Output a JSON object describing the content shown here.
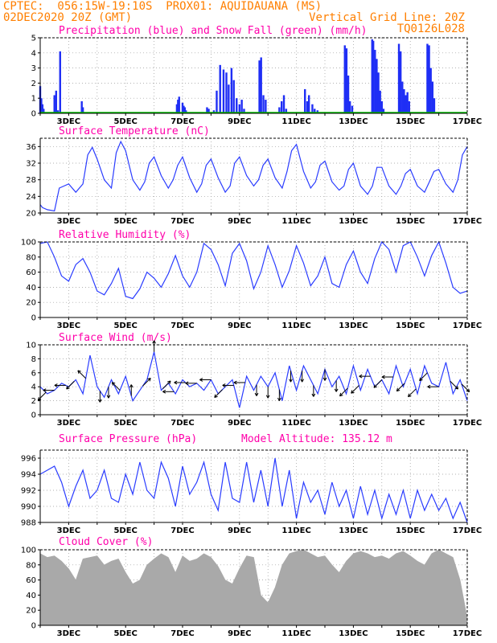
{
  "header": {
    "line1_left": "CPTEC:  056:15W-19:10S  PROX01: AQUIDAUANA (MS)",
    "line2_left": "02DEC2020 20Z (GMT)",
    "line2_right": "Vertical Grid Line: 20Z",
    "line3_right": "TQ0126L028"
  },
  "colors": {
    "header": "#ff7f00",
    "title": "#ff00aa",
    "line": "#2a3cff",
    "bar": "#1f2ef5",
    "snow": "#00c000",
    "cloud": "#a9a9a9",
    "arrow": "#000000"
  },
  "chart_data": [
    {
      "type": "bar",
      "title": "Precipitation (blue) and Snow Fall (green) (mm/h)",
      "ylim": [
        0,
        5
      ],
      "yticks": [
        0,
        1,
        2,
        3,
        4,
        5
      ],
      "x_ticks": [
        "3DEC",
        "5DEC",
        "7DEC",
        "9DEC",
        "11DEC",
        "13DEC",
        "15DEC",
        "17DEC"
      ],
      "series": [
        {
          "name": "Precipitation",
          "x": [
            2.0,
            2.04,
            2.08,
            2.12,
            2.5,
            2.56,
            2.62,
            2.7,
            3.46,
            3.5,
            6.8,
            6.84,
            6.88,
            7.0,
            7.04,
            7.08,
            7.12,
            7.86,
            7.92,
            8.1,
            8.2,
            8.32,
            8.44,
            8.54,
            8.62,
            8.72,
            8.8,
            8.9,
            9.0,
            9.08,
            9.16,
            9.7,
            9.76,
            9.84,
            9.92,
            10.4,
            10.48,
            10.56,
            10.64,
            11.3,
            11.38,
            11.44,
            11.56,
            11.64,
            11.74,
            12.7,
            12.76,
            12.82,
            12.88,
            12.96,
            13.66,
            13.7,
            13.76,
            13.82,
            13.88,
            13.94,
            14.0,
            14.06,
            14.6,
            14.66,
            14.72,
            14.78,
            14.84,
            14.9,
            14.96,
            15.6,
            15.66,
            15.72,
            15.78,
            15.84
          ],
          "values": [
            1.8,
            1.0,
            0.6,
            0.3,
            1.2,
            1.5,
            0.2,
            4.1,
            0.8,
            0.4,
            0.6,
            0.9,
            1.1,
            0.7,
            0.5,
            0.4,
            0.2,
            0.4,
            0.3,
            0.2,
            1.5,
            3.2,
            2.9,
            2.7,
            1.9,
            3.0,
            2.2,
            1.0,
            0.6,
            0.9,
            0.3,
            3.5,
            3.7,
            1.2,
            0.9,
            0.4,
            0.8,
            1.2,
            0.3,
            1.6,
            0.8,
            1.2,
            0.6,
            0.3,
            0.2,
            4.5,
            4.3,
            2.5,
            0.8,
            0.5,
            4.9,
            4.8,
            4.2,
            3.6,
            2.7,
            1.5,
            0.8,
            0.3,
            4.6,
            4.1,
            2.1,
            1.6,
            1.2,
            1.4,
            0.8,
            4.6,
            4.5,
            3.0,
            2.1,
            1.0
          ]
        },
        {
          "name": "Snow Fall",
          "x": [
            2.0,
            17.0
          ],
          "values": [
            0.05,
            0.05
          ]
        }
      ]
    },
    {
      "type": "line",
      "title": "Surface Temperature (nC)",
      "ylim": [
        20,
        38
      ],
      "yticks": [
        20,
        24,
        28,
        32,
        36
      ],
      "x_ticks": [
        "3DEC",
        "5DEC",
        "7DEC",
        "9DEC",
        "11DEC",
        "13DEC",
        "15DEC",
        "17DEC"
      ],
      "x": [
        2.0,
        2.08,
        2.25,
        2.5,
        2.67,
        3.0,
        3.25,
        3.5,
        3.67,
        3.83,
        4.0,
        4.25,
        4.5,
        4.67,
        4.83,
        5.0,
        5.25,
        5.5,
        5.67,
        5.83,
        6.0,
        6.25,
        6.5,
        6.67,
        6.83,
        7.0,
        7.25,
        7.5,
        7.67,
        7.83,
        8.0,
        8.25,
        8.5,
        8.67,
        8.83,
        9.0,
        9.25,
        9.5,
        9.67,
        9.83,
        10.0,
        10.25,
        10.5,
        10.67,
        10.83,
        11.0,
        11.25,
        11.5,
        11.67,
        11.83,
        12.0,
        12.25,
        12.5,
        12.67,
        12.83,
        13.0,
        13.25,
        13.5,
        13.67,
        13.83,
        14.0,
        14.25,
        14.5,
        14.67,
        14.83,
        15.0,
        15.25,
        15.5,
        15.67,
        15.83,
        16.0,
        16.25,
        16.5,
        16.67,
        16.83,
        17.0
      ],
      "y": [
        22.0,
        21.3,
        20.8,
        20.5,
        26.0,
        27.0,
        25.0,
        27.0,
        34.0,
        35.8,
        33.0,
        28.0,
        26.0,
        34.5,
        37.2,
        35.0,
        28.0,
        25.5,
        27.5,
        32.0,
        33.5,
        29.0,
        26.0,
        28.0,
        31.5,
        33.5,
        28.5,
        25.0,
        27.0,
        31.5,
        33.0,
        28.5,
        25.0,
        26.5,
        32.0,
        33.5,
        29.0,
        26.5,
        28.0,
        31.5,
        33.0,
        28.5,
        26.0,
        30.0,
        35.0,
        36.5,
        30.0,
        26.0,
        27.5,
        31.5,
        32.5,
        27.5,
        25.5,
        26.5,
        30.5,
        32.0,
        26.5,
        24.5,
        26.5,
        31.0,
        31.0,
        26.5,
        24.5,
        26.5,
        29.5,
        30.5,
        26.5,
        25.0,
        27.5,
        30.0,
        30.5,
        27.0,
        25.0,
        28.0,
        34.0,
        36.0
      ]
    },
    {
      "type": "line",
      "title": "Relative Humidity (%)",
      "ylim": [
        0,
        100
      ],
      "yticks": [
        0,
        20,
        40,
        60,
        80,
        100
      ],
      "x_ticks": [
        "3DEC",
        "5DEC",
        "7DEC",
        "9DEC",
        "11DEC",
        "13DEC",
        "15DEC",
        "17DEC"
      ],
      "x": [
        2.0,
        2.25,
        2.5,
        2.75,
        3.0,
        3.25,
        3.5,
        3.75,
        4.0,
        4.25,
        4.5,
        4.75,
        5.0,
        5.25,
        5.5,
        5.75,
        6.0,
        6.25,
        6.5,
        6.75,
        7.0,
        7.25,
        7.5,
        7.75,
        8.0,
        8.25,
        8.5,
        8.75,
        9.0,
        9.25,
        9.5,
        9.75,
        10.0,
        10.25,
        10.5,
        10.75,
        11.0,
        11.25,
        11.5,
        11.75,
        12.0,
        12.25,
        12.5,
        12.75,
        13.0,
        13.25,
        13.5,
        13.75,
        14.0,
        14.25,
        14.5,
        14.75,
        15.0,
        15.25,
        15.5,
        15.75,
        16.0,
        16.25,
        16.5,
        16.75,
        17.0
      ],
      "y": [
        98,
        100,
        80,
        55,
        48,
        70,
        78,
        60,
        35,
        30,
        45,
        65,
        28,
        25,
        38,
        60,
        52,
        40,
        58,
        82,
        55,
        40,
        60,
        98,
        90,
        70,
        42,
        85,
        98,
        75,
        38,
        60,
        95,
        70,
        40,
        62,
        95,
        72,
        42,
        55,
        80,
        45,
        40,
        70,
        88,
        60,
        45,
        78,
        100,
        90,
        60,
        95,
        100,
        80,
        55,
        82,
        100,
        72,
        40,
        32,
        35
      ]
    },
    {
      "type": "line",
      "title": "Surface Wind (m/s)",
      "ylim": [
        0,
        10
      ],
      "yticks": [
        0,
        2,
        4,
        6,
        8,
        10
      ],
      "x_ticks": [
        "3DEC",
        "5DEC",
        "7DEC",
        "9DEC",
        "11DEC",
        "13DEC",
        "15DEC",
        "17DEC"
      ],
      "x": [
        2.0,
        2.25,
        2.5,
        2.75,
        3.0,
        3.25,
        3.5,
        3.75,
        4.0,
        4.25,
        4.5,
        4.75,
        5.0,
        5.25,
        5.5,
        5.75,
        6.0,
        6.25,
        6.5,
        6.75,
        7.0,
        7.25,
        7.5,
        7.75,
        8.0,
        8.25,
        8.5,
        8.75,
        9.0,
        9.25,
        9.5,
        9.75,
        10.0,
        10.25,
        10.5,
        10.75,
        11.0,
        11.25,
        11.5,
        11.75,
        12.0,
        12.25,
        12.5,
        12.75,
        13.0,
        13.25,
        13.5,
        13.75,
        14.0,
        14.25,
        14.5,
        14.75,
        15.0,
        15.25,
        15.5,
        15.75,
        16.0,
        16.25,
        16.5,
        16.75,
        17.0
      ],
      "y": [
        4.0,
        3.0,
        3.5,
        4.5,
        4.0,
        5.0,
        3.0,
        8.5,
        4.0,
        2.5,
        5.0,
        3.0,
        5.5,
        2.0,
        3.5,
        5.0,
        9.0,
        3.5,
        4.5,
        3.0,
        5.0,
        4.0,
        4.5,
        3.5,
        5.0,
        3.0,
        4.0,
        5.0,
        1.0,
        5.5,
        3.5,
        5.5,
        4.0,
        6.0,
        2.0,
        7.0,
        3.5,
        7.0,
        5.0,
        3.0,
        6.5,
        4.0,
        5.5,
        3.0,
        7.0,
        3.5,
        6.5,
        4.0,
        5.0,
        3.0,
        7.0,
        4.0,
        6.5,
        3.0,
        7.0,
        4.5,
        4.0,
        7.5,
        3.0,
        5.0,
        2.0
      ],
      "arrows": {
        "x": [
          2.2,
          2.5,
          2.9,
          3.2,
          3.6,
          4.1,
          4.4,
          4.8,
          5.2,
          5.6,
          6.0,
          6.3,
          6.7,
          7.1,
          7.5,
          8.0,
          8.4,
          8.8,
          9.2,
          9.6,
          10.0,
          10.4,
          10.8,
          11.2,
          11.6,
          12.0,
          12.4,
          12.8,
          13.2,
          13.6,
          14.0,
          14.4,
          14.8,
          15.2,
          15.6,
          16.0,
          16.4,
          16.8
        ],
        "direction": [
          "SW",
          "W",
          "W",
          "SW",
          "NW",
          "S",
          "S",
          "NW",
          "N",
          "NE",
          "N",
          "NE",
          "W",
          "W",
          "W",
          "W",
          "SW",
          "W",
          "W",
          "S",
          "S",
          "S",
          "S",
          "S",
          "S",
          "S",
          "S",
          "SW",
          "SW",
          "W",
          "SW",
          "W",
          "SW",
          "SW",
          "SW",
          "W",
          "SE",
          "SE"
        ]
      }
    },
    {
      "type": "line",
      "title": "Surface Pressure (hPa)",
      "subtitle": "Model Altitude: 135.12 m",
      "ylim": [
        988,
        997
      ],
      "yticks": [
        988,
        990,
        992,
        994,
        996
      ],
      "x_ticks": [
        "3DEC",
        "5DEC",
        "7DEC",
        "9DEC",
        "11DEC",
        "13DEC",
        "15DEC",
        "17DEC"
      ],
      "x": [
        2.0,
        2.25,
        2.5,
        2.75,
        3.0,
        3.25,
        3.5,
        3.75,
        4.0,
        4.25,
        4.5,
        4.75,
        5.0,
        5.25,
        5.5,
        5.75,
        6.0,
        6.25,
        6.5,
        6.75,
        7.0,
        7.25,
        7.5,
        7.75,
        8.0,
        8.25,
        8.5,
        8.75,
        9.0,
        9.25,
        9.5,
        9.75,
        10.0,
        10.25,
        10.5,
        10.75,
        11.0,
        11.25,
        11.5,
        11.75,
        12.0,
        12.25,
        12.5,
        12.75,
        13.0,
        13.25,
        13.5,
        13.75,
        14.0,
        14.25,
        14.5,
        14.75,
        15.0,
        15.25,
        15.5,
        15.75,
        16.0,
        16.25,
        16.5,
        16.75,
        17.0
      ],
      "y": [
        994.0,
        994.5,
        995.0,
        993.0,
        990.0,
        992.5,
        994.5,
        991.0,
        992.0,
        994.5,
        991.0,
        990.5,
        994.0,
        991.5,
        995.5,
        992.0,
        991.0,
        995.5,
        993.5,
        990.0,
        995.0,
        991.5,
        993.0,
        995.5,
        991.5,
        989.5,
        995.5,
        991.0,
        990.5,
        995.5,
        990.5,
        994.5,
        990.0,
        996.0,
        990.0,
        994.5,
        988.5,
        993.0,
        990.5,
        992.0,
        989.0,
        993.0,
        990.0,
        992.0,
        988.5,
        992.5,
        989.0,
        992.0,
        988.5,
        991.5,
        989.0,
        992.0,
        988.5,
        992.0,
        989.5,
        991.5,
        989.5,
        991.0,
        988.5,
        990.5,
        988.0
      ]
    },
    {
      "type": "area",
      "title": "Cloud Cover (%)",
      "ylim": [
        0,
        100
      ],
      "yticks": [
        0,
        20,
        40,
        60,
        80,
        100
      ],
      "x_ticks": [
        "3DEC",
        "5DEC",
        "7DEC",
        "9DEC",
        "11DEC",
        "13DEC",
        "15DEC",
        "17DEC"
      ],
      "x": [
        2.0,
        2.25,
        2.5,
        2.75,
        3.0,
        3.25,
        3.5,
        3.75,
        4.0,
        4.25,
        4.5,
        4.75,
        5.0,
        5.25,
        5.5,
        5.75,
        6.0,
        6.25,
        6.5,
        6.75,
        7.0,
        7.25,
        7.5,
        7.75,
        8.0,
        8.25,
        8.5,
        8.75,
        9.0,
        9.25,
        9.5,
        9.75,
        10.0,
        10.25,
        10.5,
        10.75,
        11.0,
        11.25,
        11.5,
        11.75,
        12.0,
        12.25,
        12.5,
        12.75,
        13.0,
        13.25,
        13.5,
        13.75,
        14.0,
        14.25,
        14.5,
        14.75,
        15.0,
        15.25,
        15.5,
        15.75,
        16.0,
        16.25,
        16.5,
        16.75,
        17.0
      ],
      "y": [
        95,
        90,
        92,
        85,
        75,
        60,
        88,
        90,
        92,
        80,
        85,
        88,
        70,
        55,
        60,
        80,
        88,
        95,
        90,
        70,
        92,
        85,
        88,
        95,
        90,
        78,
        60,
        55,
        75,
        92,
        90,
        40,
        30,
        50,
        80,
        95,
        98,
        100,
        95,
        90,
        92,
        80,
        70,
        85,
        95,
        98,
        95,
        90,
        92,
        88,
        95,
        98,
        92,
        85,
        80,
        95,
        100,
        95,
        90,
        60,
        10
      ]
    }
  ]
}
